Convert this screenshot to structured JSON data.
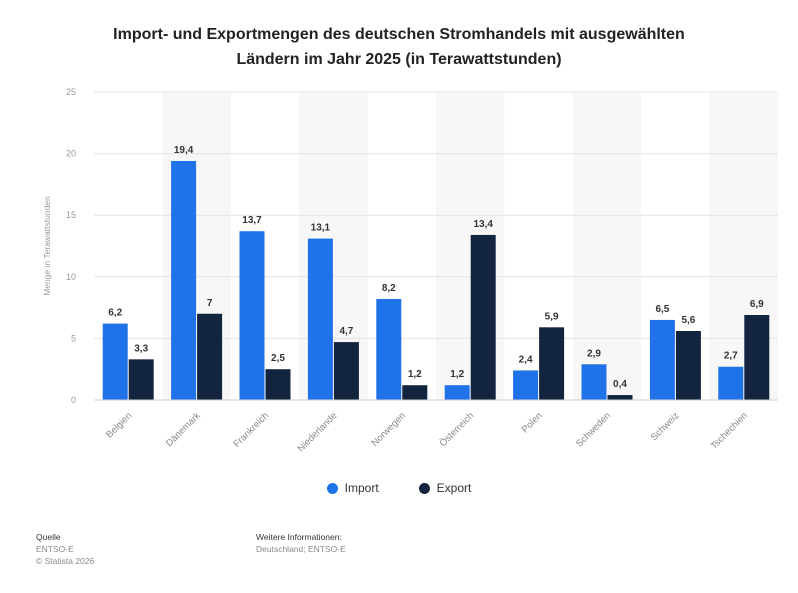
{
  "title_line1": "Import- und Exportmengen des deutschen Stromhandels mit ausgewählten",
  "title_line2": "Ländern im Jahr 2025 (in Terawattstunden)",
  "colors": {
    "import": "#1f72e8",
    "export": "#13243f",
    "grid": "#e4e4e4",
    "band": "#f7f7f7"
  },
  "footer": {
    "source_heading": "Quelle",
    "source_name": "ENTSO-E",
    "copyright": "© Statista 2026",
    "info_heading": "Weitere Informationen:",
    "info_text": "Deutschland; ENTSO-E"
  },
  "chart_data": {
    "type": "bar",
    "title": "Import- und Exportmengen des deutschen Stromhandels mit ausgewählten Ländern im Jahr 2025 (in Terawattstunden)",
    "ylabel": "Menge in Terawattstunden",
    "xlabel": "",
    "ylim": [
      0,
      25
    ],
    "yticks": [
      0,
      5,
      10,
      15,
      20,
      25
    ],
    "grid": true,
    "legend_position": "bottom",
    "categories": [
      "Belgien",
      "Dänemark",
      "Frankreich",
      "Niederlande",
      "Norwegen",
      "Österreich",
      "Polen",
      "Schweden",
      "Schweiz",
      "Tschechien"
    ],
    "series": [
      {
        "name": "Import",
        "values": [
          6.2,
          19.4,
          13.7,
          13.1,
          8.2,
          1.2,
          2.4,
          2.9,
          6.5,
          2.7
        ],
        "labels": [
          "6,2",
          "19,4",
          "13,7",
          "13,1",
          "8,2",
          "1,2",
          "2,4",
          "2,9",
          "6,5",
          "2,7"
        ]
      },
      {
        "name": "Export",
        "values": [
          3.3,
          7,
          2.5,
          4.7,
          1.2,
          13.4,
          5.9,
          0.4,
          5.6,
          6.9
        ],
        "labels": [
          "3,3",
          "7",
          "2,5",
          "4,7",
          "1,2",
          "13,4",
          "5,9",
          "0,4",
          "5,6",
          "6,9"
        ]
      }
    ]
  }
}
